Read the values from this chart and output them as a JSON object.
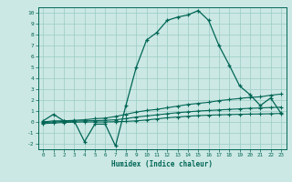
{
  "title": "",
  "xlabel": "Humidex (Indice chaleur)",
  "bg_color": "#cce8e4",
  "grid_color": "#99ccc4",
  "line_color": "#006655",
  "xlim": [
    -0.5,
    23.5
  ],
  "ylim": [
    -2.5,
    10.5
  ],
  "xticks": [
    0,
    1,
    2,
    3,
    4,
    5,
    6,
    7,
    8,
    9,
    10,
    11,
    12,
    13,
    14,
    15,
    16,
    17,
    18,
    19,
    20,
    21,
    22,
    23
  ],
  "yticks": [
    -2,
    -1,
    0,
    1,
    2,
    3,
    4,
    5,
    6,
    7,
    8,
    9,
    10
  ],
  "main_curve_x": [
    0,
    1,
    2,
    3,
    4,
    5,
    6,
    7,
    8,
    9,
    10,
    11,
    12,
    13,
    14,
    15,
    16,
    17,
    18,
    19,
    20,
    21,
    22,
    23
  ],
  "main_curve_y": [
    0.1,
    0.7,
    0.1,
    0.1,
    -1.8,
    -0.2,
    -0.2,
    -2.2,
    1.5,
    5.0,
    7.5,
    8.2,
    9.3,
    9.6,
    9.8,
    10.2,
    9.3,
    7.0,
    5.2,
    3.3,
    2.5,
    1.5,
    2.2,
    0.8
  ],
  "line2_x": [
    0,
    1,
    2,
    3,
    4,
    5,
    6,
    7,
    8,
    9,
    10,
    11,
    12,
    13,
    14,
    15,
    16,
    17,
    18,
    19,
    20,
    21,
    22,
    23
  ],
  "line2_y": [
    0.0,
    0.1,
    0.1,
    0.15,
    0.2,
    0.3,
    0.35,
    0.5,
    0.7,
    0.9,
    1.05,
    1.15,
    1.3,
    1.45,
    1.6,
    1.7,
    1.8,
    1.95,
    2.05,
    2.15,
    2.25,
    2.3,
    2.45,
    2.55
  ],
  "line3_x": [
    0,
    1,
    2,
    3,
    4,
    5,
    6,
    7,
    8,
    9,
    10,
    11,
    12,
    13,
    14,
    15,
    16,
    17,
    18,
    19,
    20,
    21,
    22,
    23
  ],
  "line3_y": [
    -0.05,
    0.0,
    0.05,
    0.08,
    0.1,
    0.12,
    0.15,
    0.2,
    0.3,
    0.45,
    0.55,
    0.65,
    0.75,
    0.85,
    0.92,
    1.0,
    1.05,
    1.1,
    1.15,
    1.2,
    1.25,
    1.28,
    1.32,
    1.35
  ],
  "line4_x": [
    0,
    1,
    2,
    3,
    4,
    5,
    6,
    7,
    8,
    9,
    10,
    11,
    12,
    13,
    14,
    15,
    16,
    17,
    18,
    19,
    20,
    21,
    22,
    23
  ],
  "line4_y": [
    -0.15,
    -0.1,
    -0.05,
    -0.02,
    0.0,
    0.0,
    0.0,
    0.02,
    0.05,
    0.1,
    0.18,
    0.28,
    0.38,
    0.45,
    0.52,
    0.58,
    0.62,
    0.65,
    0.68,
    0.7,
    0.72,
    0.73,
    0.75,
    0.78
  ]
}
